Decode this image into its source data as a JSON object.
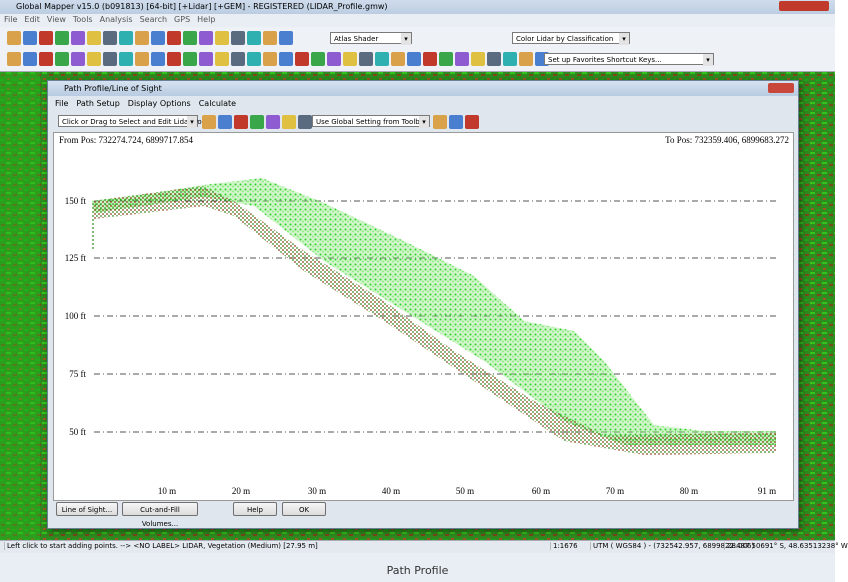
{
  "window": {
    "title": "Global Mapper v15.0 (b091813) [64-bit] [+Lidar] [+GEM] - REGISTERED (LIDAR_Profile.gmw)",
    "menu": [
      "File",
      "Edit",
      "View",
      "Tools",
      "Analysis",
      "Search",
      "GPS",
      "Help"
    ],
    "toolbar": {
      "shader": "Atlas Shader",
      "lidar_color": "Color Lidar by Classification",
      "favorites": "Set up Favorites Shortcut Keys..."
    }
  },
  "dialog": {
    "title": "Path Profile/Line of Sight",
    "menu": [
      "File",
      "Path Setup",
      "Display Options",
      "Calculate"
    ],
    "toolbar": {
      "mode": "Click or Drag to Select and Edit Lidar Points",
      "setting": "Use Global Setting from Toolbar"
    },
    "from_pos": "From Pos: 732274.724, 6899717.854",
    "to_pos": "To Pos: 732359.406, 6899683.272",
    "y_labels": [
      "150 ft",
      "125 ft",
      "100 ft",
      "75 ft",
      "50 ft"
    ],
    "x_labels": [
      "10 m",
      "20 m",
      "30 m",
      "40 m",
      "50 m",
      "60 m",
      "70 m",
      "80 m",
      "91 m"
    ],
    "buttons": [
      "Line of Sight...",
      "Cut-and-Fill Volumes...",
      "Help",
      "OK"
    ]
  },
  "status_bar": [
    "Left click to start adding points. --> <NO LABEL> LIDAR, Vegetation (Medium) [27.95 m]",
    "1:1676",
    "UTM ( WGS84 ) - (732542.957, 6899822.487 )",
    "28.00650691° S, 48.63513238° W"
  ],
  "caption": "Path Profile"
}
